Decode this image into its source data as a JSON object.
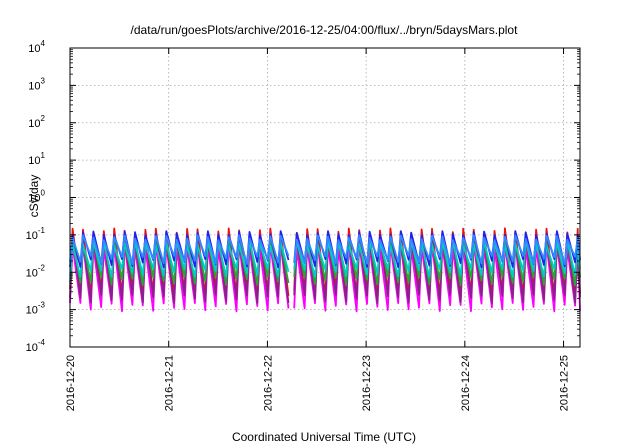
{
  "chart_data": {
    "type": "line",
    "title": "/data/run/goesPlots/archive/2016-12-25/04:00/flux/../bryn/5daysMars.plot",
    "xlabel": "Coordinated Universal Time (UTC)",
    "ylabel": "cSv/day",
    "yscale": "log",
    "ylim": [
      0.0001,
      10000
    ],
    "xlim": [
      "2016-12-20 00:00",
      "2016-12-25 04:00"
    ],
    "grid": true,
    "x_ticks": [
      "2016-12-20",
      "2016-12-21",
      "2016-12-22",
      "2016-12-23",
      "2016-12-24",
      "2016-12-25"
    ],
    "y_ticks": [
      {
        "base": "10",
        "exp": "-4"
      },
      {
        "base": "10",
        "exp": "-3"
      },
      {
        "base": "10",
        "exp": "-2"
      },
      {
        "base": "10",
        "exp": "-1"
      },
      {
        "base": "10",
        "exp": "0"
      },
      {
        "base": "10",
        "exp": "1"
      },
      {
        "base": "10",
        "exp": "2"
      },
      {
        "base": "10",
        "exp": "3"
      },
      {
        "base": "10",
        "exp": "4"
      }
    ],
    "pattern": {
      "description_of_shape": "sawtooth",
      "period_hours": 2.53,
      "gap_start": "2016-12-22 04:00",
      "gap_end": "2016-12-22 06:30"
    },
    "series": [
      {
        "color": "#ff00ff",
        "peak": 0.05,
        "trough": 0.0012
      },
      {
        "color": "#ee1111",
        "peak": 0.13,
        "trough": 0.003
      },
      {
        "color": "#882288",
        "peak": 0.09,
        "trough": 0.002
      },
      {
        "color": "#22aa33",
        "peak": 0.07,
        "trough": 0.006
      },
      {
        "color": "#00cccc",
        "peak": 0.06,
        "trough": 0.01
      },
      {
        "color": "#2222ee",
        "peak": 0.11,
        "trough": 0.018
      },
      {
        "color": "#3388ff",
        "peak": 0.085,
        "trough": 0.022
      }
    ]
  }
}
